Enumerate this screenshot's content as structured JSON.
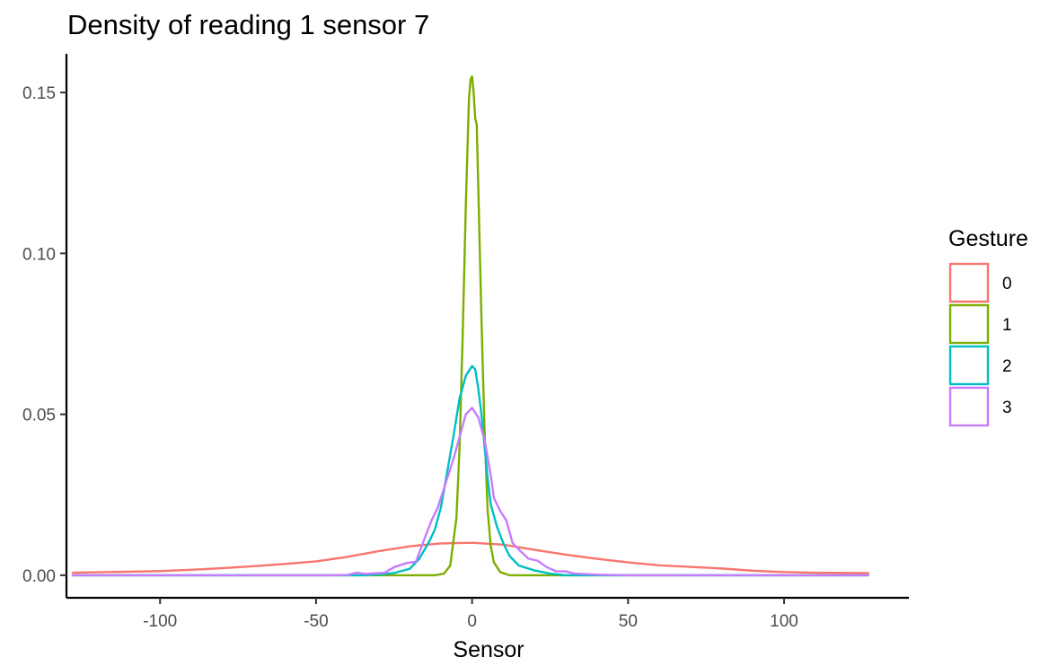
{
  "chart_data": {
    "type": "line",
    "title": "Density of reading 1 sensor 7",
    "xlabel": "Sensor",
    "ylabel": "",
    "xlim": [
      -130,
      140
    ],
    "ylim": [
      -0.007,
      0.162
    ],
    "x_ticks": [
      -100,
      -50,
      0,
      50,
      100
    ],
    "x_tick_labels": [
      "-100",
      "-50",
      "0",
      "50",
      "100"
    ],
    "y_ticks": [
      0,
      0.05,
      0.1,
      0.15
    ],
    "y_tick_labels": [
      "0.00",
      "0.05",
      "0.10",
      "0.15"
    ],
    "grid": false,
    "legend": {
      "title": "Gesture",
      "placement": "right"
    },
    "series": [
      {
        "name": "0",
        "color": "#F8766D",
        "points": [
          [
            -128,
            0.0008
          ],
          [
            -110,
            0.0011
          ],
          [
            -100,
            0.0013
          ],
          [
            -90,
            0.0017
          ],
          [
            -80,
            0.0022
          ],
          [
            -70,
            0.0028
          ],
          [
            -60,
            0.0035
          ],
          [
            -50,
            0.0043
          ],
          [
            -40,
            0.0057
          ],
          [
            -30,
            0.0075
          ],
          [
            -20,
            0.009
          ],
          [
            -10,
            0.0099
          ],
          [
            0,
            0.0101
          ],
          [
            10,
            0.0095
          ],
          [
            20,
            0.0079
          ],
          [
            30,
            0.0064
          ],
          [
            40,
            0.0051
          ],
          [
            50,
            0.004
          ],
          [
            60,
            0.0031
          ],
          [
            70,
            0.0026
          ],
          [
            80,
            0.0021
          ],
          [
            90,
            0.0014
          ],
          [
            100,
            0.001
          ],
          [
            110,
            0.0008
          ],
          [
            127,
            0.0007
          ]
        ]
      },
      {
        "name": "1",
        "color": "#7CAE00",
        "points": [
          [
            -128,
            0.0
          ],
          [
            -12,
            0.0
          ],
          [
            -9,
            0.0005
          ],
          [
            -7,
            0.003
          ],
          [
            -5,
            0.018
          ],
          [
            -4,
            0.04
          ],
          [
            -3,
            0.075
          ],
          [
            -2,
            0.115
          ],
          [
            -1,
            0.148
          ],
          [
            -0.5,
            0.154
          ],
          [
            0,
            0.155
          ],
          [
            0.5,
            0.15
          ],
          [
            1,
            0.142
          ],
          [
            1.5,
            0.14
          ],
          [
            2,
            0.12
          ],
          [
            3,
            0.08
          ],
          [
            4,
            0.045
          ],
          [
            5,
            0.02
          ],
          [
            6,
            0.009
          ],
          [
            7,
            0.004
          ],
          [
            9,
            0.001
          ],
          [
            12,
            0.0
          ],
          [
            127,
            0.0
          ]
        ]
      },
      {
        "name": "2",
        "color": "#00BFC4",
        "points": [
          [
            -128,
            0.0
          ],
          [
            -35,
            0.0
          ],
          [
            -30,
            0.0002
          ],
          [
            -25,
            0.0007
          ],
          [
            -20,
            0.002
          ],
          [
            -17,
            0.005
          ],
          [
            -14,
            0.01
          ],
          [
            -12,
            0.014
          ],
          [
            -10,
            0.021
          ],
          [
            -8,
            0.032
          ],
          [
            -6,
            0.043
          ],
          [
            -4,
            0.055
          ],
          [
            -2,
            0.062
          ],
          [
            0,
            0.065
          ],
          [
            1,
            0.064
          ],
          [
            2,
            0.058
          ],
          [
            3,
            0.05
          ],
          [
            4,
            0.04
          ],
          [
            5,
            0.03
          ],
          [
            6,
            0.022
          ],
          [
            8,
            0.015
          ],
          [
            10,
            0.01
          ],
          [
            12,
            0.006
          ],
          [
            15,
            0.003
          ],
          [
            20,
            0.0015
          ],
          [
            25,
            0.0005
          ],
          [
            30,
            0.0
          ],
          [
            127,
            0.0
          ]
        ]
      },
      {
        "name": "3",
        "color": "#C77CFF",
        "points": [
          [
            -128,
            0.0
          ],
          [
            -45,
            0.0
          ],
          [
            -40,
            0.0001
          ],
          [
            -37,
            0.0008
          ],
          [
            -34,
            0.0004
          ],
          [
            -31,
            0.0006
          ],
          [
            -28,
            0.0008
          ],
          [
            -25,
            0.0025
          ],
          [
            -21,
            0.0038
          ],
          [
            -18,
            0.0042
          ],
          [
            -15,
            0.012
          ],
          [
            -13,
            0.017
          ],
          [
            -11,
            0.021
          ],
          [
            -9,
            0.027
          ],
          [
            -6,
            0.036
          ],
          [
            -4,
            0.043
          ],
          [
            -2,
            0.05
          ],
          [
            0,
            0.052
          ],
          [
            2,
            0.049
          ],
          [
            4,
            0.042
          ],
          [
            6,
            0.031
          ],
          [
            7,
            0.024
          ],
          [
            9,
            0.02
          ],
          [
            11,
            0.017
          ],
          [
            13,
            0.01
          ],
          [
            15,
            0.008
          ],
          [
            18,
            0.0052
          ],
          [
            21,
            0.0045
          ],
          [
            24,
            0.0025
          ],
          [
            27,
            0.0012
          ],
          [
            30,
            0.0012
          ],
          [
            33,
            0.0005
          ],
          [
            40,
            0.0002
          ],
          [
            50,
            0.0
          ],
          [
            127,
            0.0
          ]
        ]
      }
    ]
  }
}
